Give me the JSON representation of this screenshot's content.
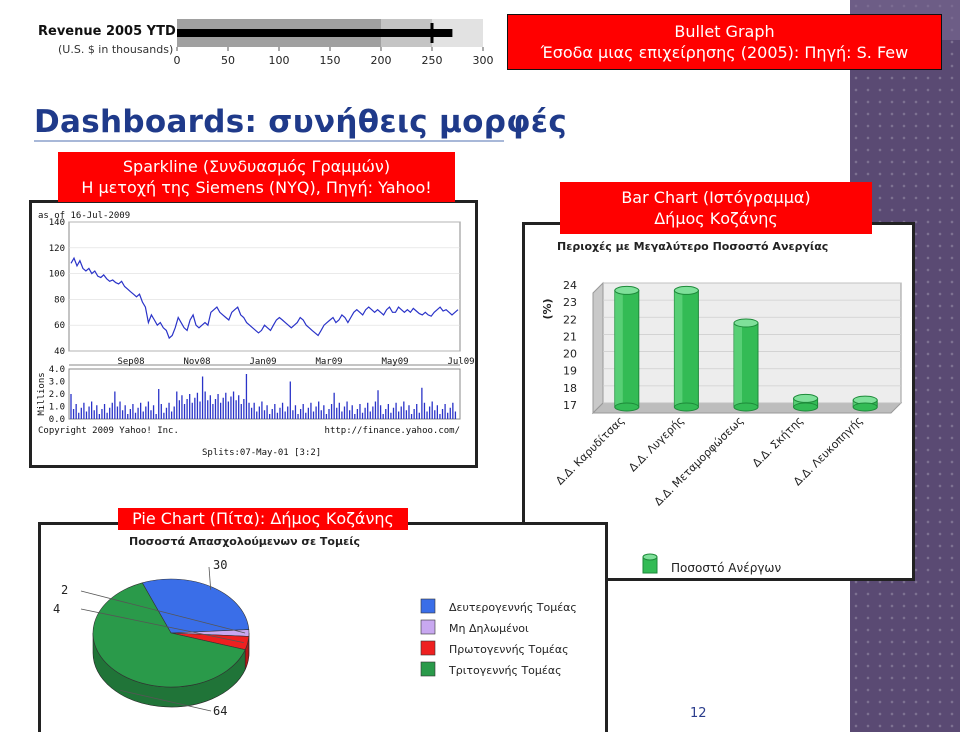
{
  "page": {
    "title": "Dashboards: συνήθεις μορφές",
    "number": "12"
  },
  "bullet": {
    "caption_line1": "Bullet Graph",
    "caption_line2": "Έσοδα μιας επιχείρησης (2005): Πηγή: S. Few",
    "title": "Revenue 2005 YTD",
    "subtitle": "(U.S. $ in thousands)",
    "colors": {
      "bg_dark": "#a0a0a0",
      "bg_mid": "#c4c4c4",
      "bg_light": "#e2e2e2",
      "bar": "#000000"
    }
  },
  "sparkline": {
    "caption_line1": "Sparkline (Συνδυασμός Γραμμών)",
    "caption_line2": "Η μετοχή της Siemens (NYQ), Πηγή: Yahoo!",
    "as_of": "as of 16-Jul-2009",
    "volume_label": "Millions",
    "copyright": "Copyright 2009 Yahoo! Inc.",
    "url": "http://finance.yahoo.com/",
    "splits": "Splits:07-May-01 [3:2]"
  },
  "barchart": {
    "caption_line1": "Bar Chart (Ιστόγραμμα)",
    "caption_line2": "Δήμος Κοζάνης",
    "title": "Περιοχές με Μεγαλύτερο Ποσοστό Ανεργίας",
    "ylabel": "(%)",
    "legend": "Ποσοστό Ανέργων"
  },
  "pie": {
    "caption": "Pie Chart (Πίτα): Δήμος Κοζάνης",
    "title": "Ποσοστά Απασχολούμενων σε Τομείς"
  },
  "chart_data": [
    {
      "type": "bullet",
      "title": "Revenue 2005 YTD",
      "subtitle": "(U.S. $ in thousands)",
      "xlim": [
        0,
        300
      ],
      "ticks": [
        0,
        50,
        100,
        150,
        200,
        250,
        300
      ],
      "ranges": [
        200,
        250,
        300
      ],
      "value": 270,
      "target": 250
    },
    {
      "type": "line",
      "title": "",
      "xlabel": "",
      "ylabel": "",
      "ylim": [
        40,
        140
      ],
      "y_ticks": [
        140,
        120,
        100,
        80,
        60,
        40
      ],
      "x_tick_labels": [
        "Sep08",
        "Nov08",
        "Jan09",
        "Mar09",
        "May09",
        "Jul09"
      ],
      "x_range": [
        "Jul08",
        "Jul09"
      ],
      "close": [
        108,
        112,
        106,
        110,
        104,
        102,
        104,
        100,
        102,
        98,
        97,
        99,
        96,
        94,
        95,
        93,
        92,
        94,
        90,
        88,
        86,
        84,
        82,
        84,
        78,
        74,
        62,
        68,
        64,
        60,
        62,
        58,
        56,
        50,
        52,
        58,
        66,
        62,
        58,
        56,
        64,
        68,
        60,
        58,
        60,
        62,
        60,
        70,
        72,
        74,
        70,
        68,
        66,
        64,
        70,
        72,
        74,
        68,
        66,
        62,
        60,
        58,
        56,
        54,
        56,
        60,
        58,
        56,
        60,
        64,
        66,
        64,
        62,
        60,
        58,
        60,
        62,
        66,
        64,
        60,
        58,
        56,
        54,
        52,
        56,
        60,
        62,
        64,
        66,
        62,
        64,
        68,
        66,
        62,
        66,
        70,
        72,
        70,
        68,
        72,
        74,
        72,
        70,
        72,
        70,
        68,
        72,
        74,
        70,
        70,
        74,
        72,
        70,
        72,
        70,
        73,
        71,
        69,
        68,
        70,
        68,
        67,
        70,
        72,
        74,
        71,
        72,
        70,
        68,
        70,
        72
      ],
      "volume": {
        "label": "Millions",
        "ylim": [
          0,
          4.0
        ],
        "y_ticks": [
          "4.0",
          "3.0",
          "2.0",
          "1.0",
          "0.0"
        ]
      }
    },
    {
      "type": "bar",
      "title": "Περιοχές με Μεγαλύτερο Ποσοστό Ανεργίας",
      "xlabel": "",
      "ylabel": "(%)",
      "ylim": [
        17,
        24
      ],
      "y_ticks": [
        24,
        23,
        22,
        21,
        20,
        19,
        18,
        17
      ],
      "categories": [
        "Δ.Δ. Καρυδίτσας",
        "Δ.Δ. Λυγερής",
        "Δ.Δ. Μεταμορφώσεως",
        "Δ.Δ. Σκήτης",
        "Δ.Δ. Λευκοπηγής"
      ],
      "series": [
        {
          "name": "Ποσοστό Ανέργων",
          "values": [
            23.8,
            23.8,
            21.9,
            17.5,
            17.4
          ]
        }
      ],
      "colors": {
        "bar": "#33bb55",
        "bar_dark": "#1e8a3a",
        "wall": "#c9c9c9"
      }
    },
    {
      "type": "pie",
      "title": "Ποσοστά Απασχολούμενων σε Τομείς",
      "slices": [
        {
          "label": "Δευτερογεννής Τομέας",
          "value": 30,
          "color": "#3a6ee8"
        },
        {
          "label": "Μη Δηλωμένοι",
          "value": 2,
          "color": "#c8a8f0"
        },
        {
          "label": "Πρωτογεννής Τομέας",
          "value": 4,
          "color": "#ee2020"
        },
        {
          "label": "Τριτογεννής Τομέας",
          "value": 64,
          "color": "#2a9a4a"
        }
      ]
    }
  ]
}
